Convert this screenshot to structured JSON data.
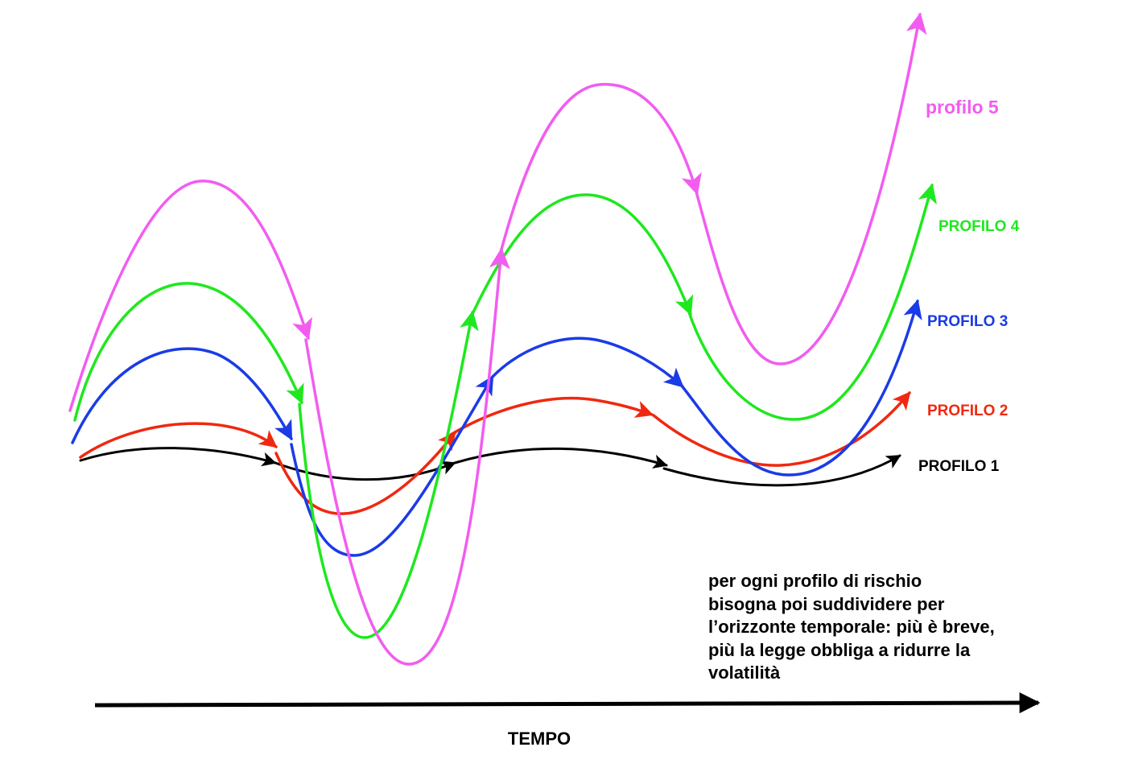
{
  "profiles": [
    {
      "id": "profilo-5",
      "label": "profilo 5",
      "color": "#f25cf0"
    },
    {
      "id": "profilo-4",
      "label": "PROFILO 4",
      "color": "#1ee81e"
    },
    {
      "id": "profilo-3",
      "label": "PROFILO 3",
      "color": "#1a3be6"
    },
    {
      "id": "profilo-2",
      "label": "PROFILO 2",
      "color": "#f0280f"
    },
    {
      "id": "profilo-1",
      "label": "PROFILO 1",
      "color": "#000000"
    }
  ],
  "note": {
    "lines": [
      "per ogni profilo di rischio",
      "bisogna poi suddividere per",
      "l’orizzonte temporale: più è breve,",
      "più la legge obbliga a ridurre la",
      "volatilità"
    ]
  },
  "axis": {
    "label": "TEMPO"
  }
}
